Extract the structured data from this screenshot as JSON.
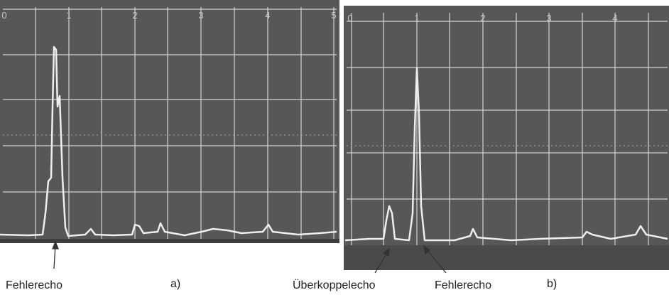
{
  "panels": [
    {
      "scale": [
        "0",
        "1",
        "2",
        "3",
        "4",
        "5"
      ],
      "caption": "a)",
      "arrow_labels": [
        "Fehlerecho"
      ]
    },
    {
      "scale": [
        "0",
        "1",
        "2",
        "3",
        "4"
      ],
      "caption": "b)",
      "arrow_labels": [
        "Überkoppelecho",
        "Fehlerecho"
      ]
    }
  ]
}
